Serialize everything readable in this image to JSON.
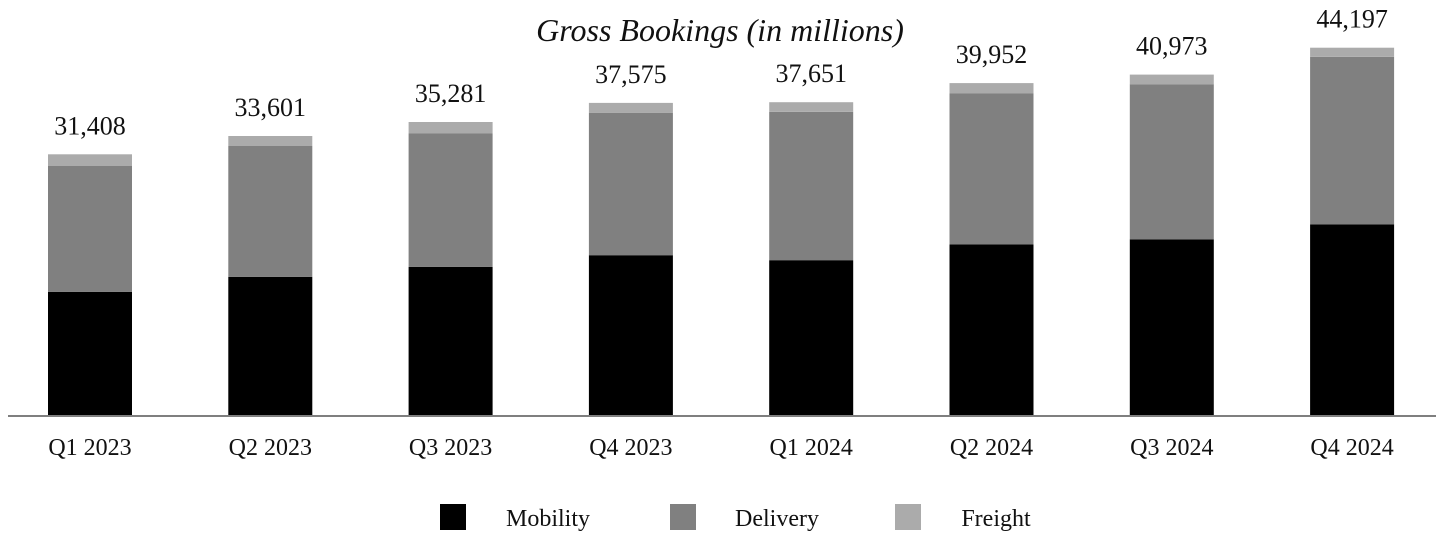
{
  "chart_data": {
    "type": "bar",
    "stacked": true,
    "title": "Gross Bookings (in millions)",
    "xlabel": "",
    "ylabel": "",
    "ylim": [
      0,
      48000
    ],
    "grid": false,
    "legend_position": "bottom-center",
    "categories": [
      "Q1 2023",
      "Q2 2023",
      "Q3 2023",
      "Q4 2023",
      "Q1 2024",
      "Q2 2024",
      "Q3 2024",
      "Q4 2024"
    ],
    "totals": [
      "31,408",
      "33,601",
      "35,281",
      "37,575",
      "37,651",
      "39,952",
      "40,973",
      "44,197"
    ],
    "series": [
      {
        "name": "Mobility",
        "color": "#000000",
        "values": [
          14900,
          16700,
          17900,
          19300,
          18700,
          20600,
          21200,
          23000
        ]
      },
      {
        "name": "Delivery",
        "color": "#808080",
        "values": [
          15100,
          15700,
          16000,
          17100,
          17800,
          18100,
          18600,
          20100
        ]
      },
      {
        "name": "Freight",
        "color": "#ABABAB",
        "values": [
          1408,
          1201,
          1381,
          1175,
          1151,
          1252,
          1173,
          1097
        ]
      }
    ]
  }
}
